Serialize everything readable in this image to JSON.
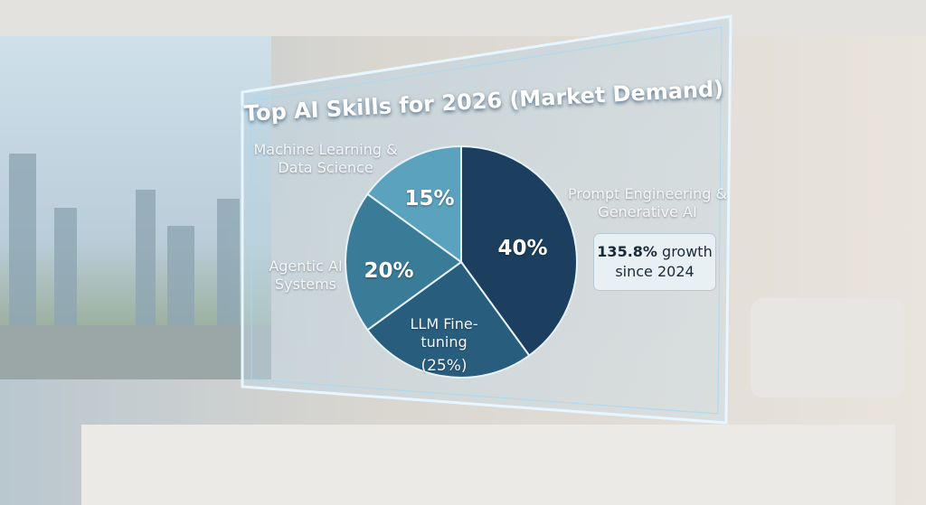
{
  "chart_data": {
    "type": "pie",
    "title": "Top AI Skills for 2026 (Market Demand)",
    "categories": [
      "Prompt Engineering & Generative AI",
      "LLM Fine-tuning",
      "Agentic AI Systems",
      "Machine Learning & Data Science"
    ],
    "values": [
      40,
      25,
      20,
      15
    ],
    "value_labels": [
      "40%",
      "(25%)",
      "20%",
      "15%"
    ],
    "colors": [
      "#1d3f5f",
      "#295d7d",
      "#3a7c98",
      "#5ba2be"
    ],
    "annotation": {
      "highlight": "135.8%",
      "text": "growth since 2024"
    }
  }
}
